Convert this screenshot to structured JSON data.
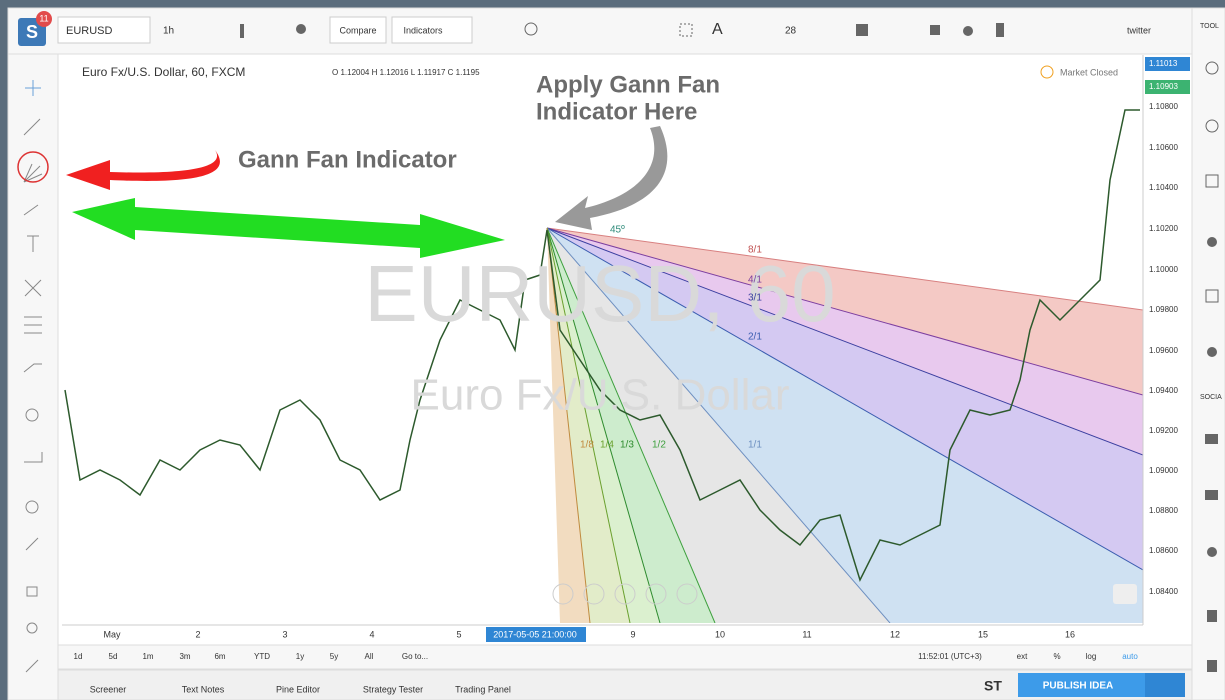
{
  "logo": {
    "letter": "S",
    "badge": "11"
  },
  "toolbar": {
    "symbol": "EURUSD",
    "interval": "1h",
    "compare": "Compare",
    "indicators": "Indicators",
    "font_size": "28",
    "layout": "twitter"
  },
  "legend": {
    "title": "Euro Fx/U.S. Dollar, 60, FXCM",
    "ohlc": "O 1.12004 H 1.12016 L 1.11917 C 1.1195",
    "status": "Market Closed"
  },
  "watermark": {
    "symbol": "EURUSD, 60",
    "description": "Euro Fx/U.S. Dollar"
  },
  "annotations": {
    "apply": [
      "Apply Gann Fan",
      "Indicator Here"
    ],
    "indicator": "Gann Fan Indicator"
  },
  "fan_labels": [
    "8/1",
    "4/1",
    "3/1",
    "2/1",
    "1/1",
    "1/2",
    "1/3",
    "1/4",
    "1/8",
    "45º"
  ],
  "price_axis": [
    "1.11013",
    "1.10903",
    "1.10800",
    "1.10600",
    "1.10400",
    "1.10200",
    "1.10000",
    "1.09800",
    "1.09600",
    "1.09400",
    "1.09200",
    "1.09000",
    "1.08800",
    "1.08600",
    "1.08400"
  ],
  "time_axis": [
    "May",
    "2",
    "3",
    "4",
    "5",
    "2017-05-05 21:00:00",
    "9",
    "10",
    "11",
    "12",
    "15",
    "16"
  ],
  "range_bar": [
    "1d",
    "5d",
    "1m",
    "3m",
    "6m",
    "YTD",
    "1y",
    "5y",
    "All",
    "Go to..."
  ],
  "status_bar": [
    "11:52:01 (UTC+3)",
    "ext",
    "%",
    "log",
    "auto"
  ],
  "bottom_tabs": [
    "Screener",
    "Text Notes",
    "Pine Editor",
    "Strategy Tester",
    "Trading Panel"
  ],
  "bottom_right": {
    "stocktwits": "ST",
    "publish": "PUBLISH IDEA"
  },
  "right_sidebar": {
    "tools": "TOOL",
    "social": "SOCIA"
  }
}
